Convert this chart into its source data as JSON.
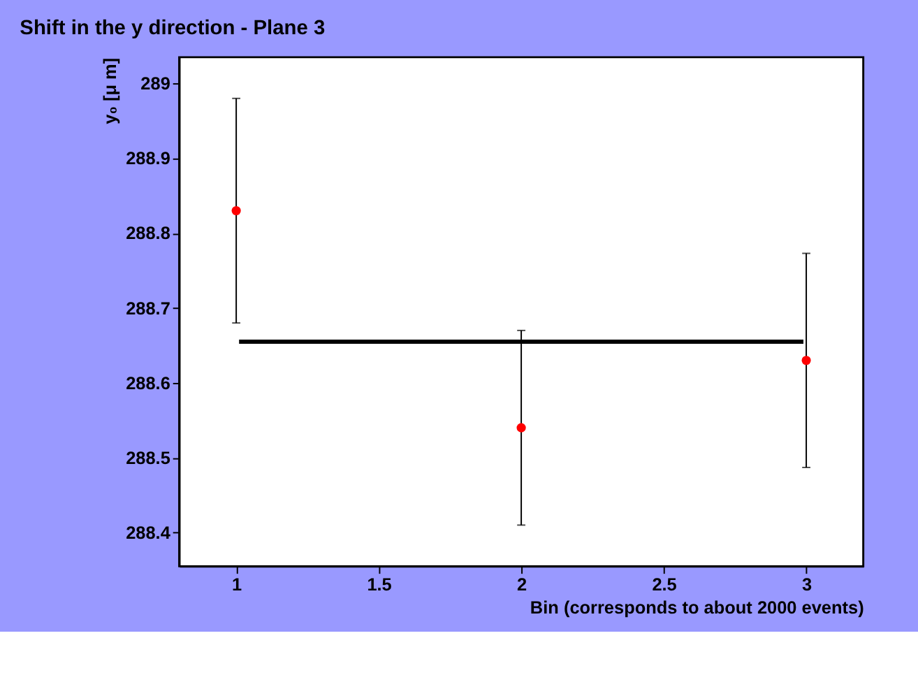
{
  "chart_data": {
    "type": "scatter",
    "title": "Shift in the y direction - Plane 3",
    "xlabel": "Bin (corresponds to about 2000 events)",
    "ylabel": "y₀ [μ m]",
    "x": [
      1,
      2,
      3
    ],
    "series": [
      {
        "color": "#ff0000",
        "values": [
          288.83,
          288.54,
          288.63
        ],
        "errors": [
          0.15,
          0.13,
          0.143
        ],
        "marker": "circle"
      },
      {
        "type": "line",
        "color": "#000000",
        "x": [
          1.01,
          2.99
        ],
        "values": [
          288.655,
          288.655
        ],
        "line_style": "solid",
        "marker": "none"
      }
    ],
    "xlim": [
      0.8,
      3.2
    ],
    "xticks": [
      1,
      1.5,
      2,
      2.5,
      3
    ],
    "ylim": [
      288.355,
      289.035
    ],
    "yticks": [
      288.4,
      288.5,
      288.6,
      288.7,
      288.8,
      288.9,
      289
    ],
    "grid": false
  }
}
